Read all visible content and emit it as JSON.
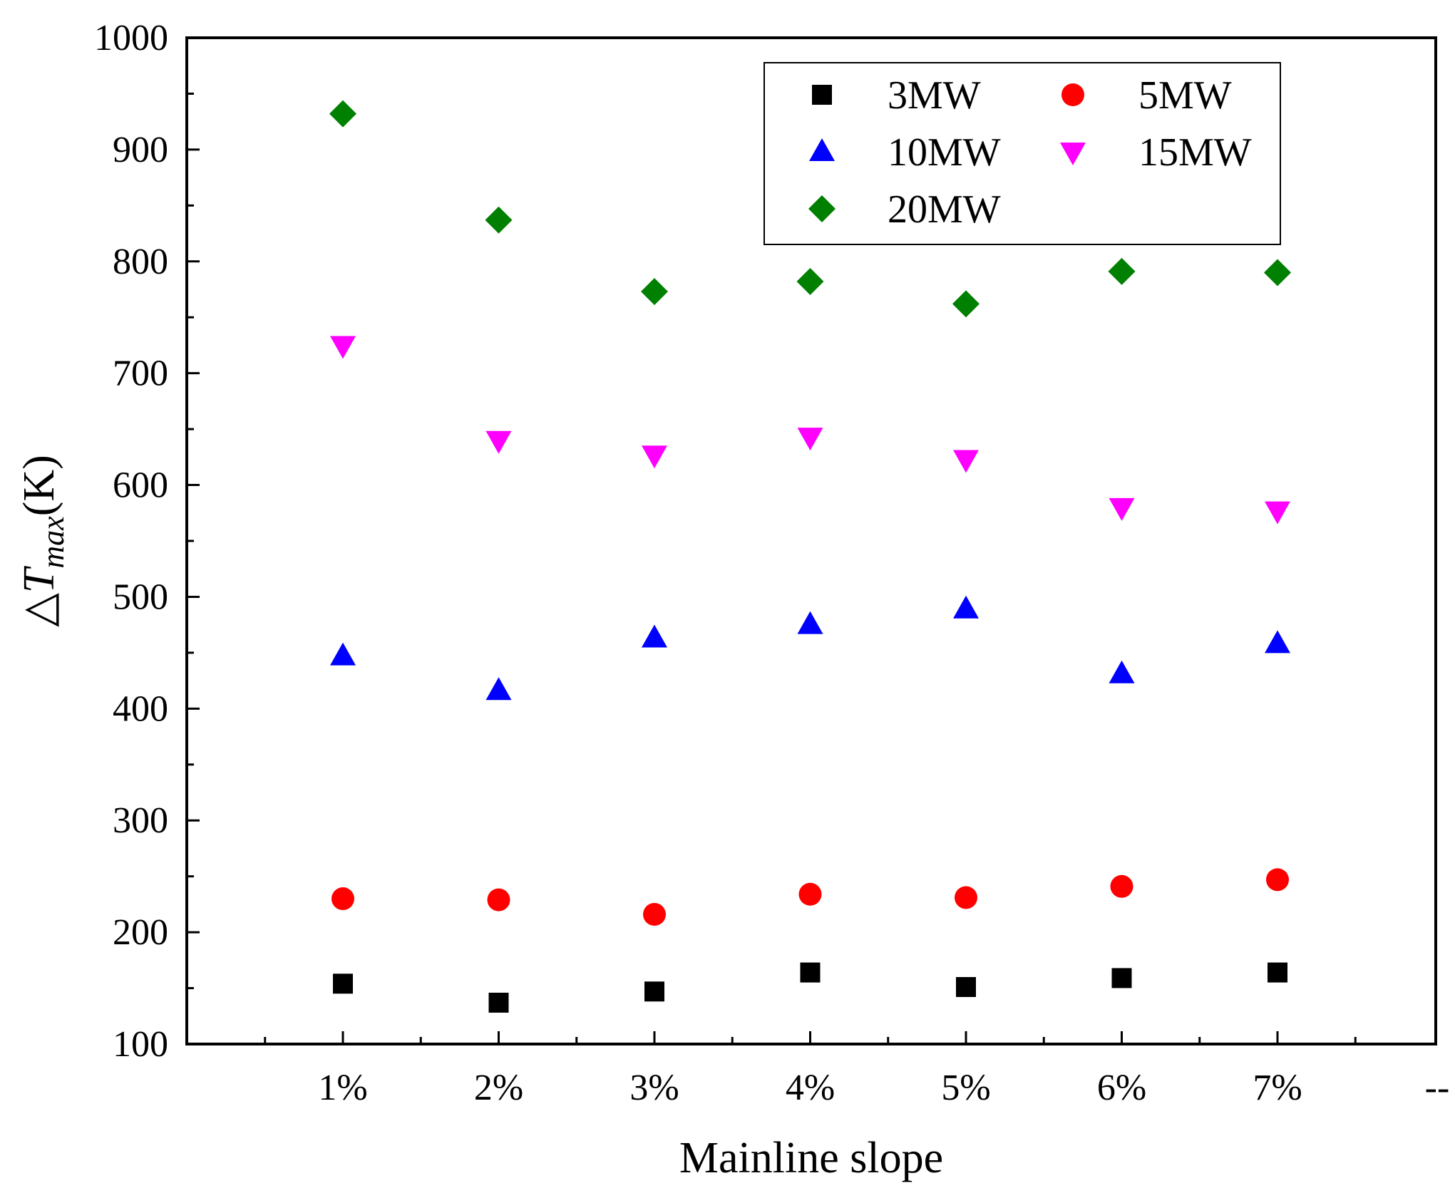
{
  "chart_data": {
    "type": "scatter",
    "title": "",
    "xlabel": "Mainline slope",
    "ylabel": {
      "prefix": "△",
      "var": "T",
      "sub": "max",
      "suffix": "(K)"
    },
    "categories": [
      "1%",
      "2%",
      "3%",
      "4%",
      "5%",
      "6%",
      "7%"
    ],
    "extra_tick_label": "--",
    "ylim": [
      100,
      1000
    ],
    "yticks": [
      100,
      200,
      300,
      400,
      500,
      600,
      700,
      800,
      900,
      1000
    ],
    "grid": false,
    "legend_position": "top-right",
    "series": [
      {
        "name": "3MW",
        "marker": "square",
        "color": "#000000",
        "values": [
          154,
          137,
          147,
          164,
          151,
          159,
          164
        ]
      },
      {
        "name": "5MW",
        "marker": "circle",
        "color": "#ff0000",
        "values": [
          230,
          229,
          216,
          234,
          231,
          241,
          247
        ]
      },
      {
        "name": "10MW",
        "marker": "triangle-up",
        "color": "#0000ff",
        "values": [
          447,
          416,
          463,
          475,
          489,
          431,
          458
        ]
      },
      {
        "name": "15MW",
        "marker": "triangle-down",
        "color": "#ff00ff",
        "values": [
          725,
          640,
          627,
          643,
          623,
          580,
          577
        ]
      },
      {
        "name": "20MW",
        "marker": "diamond",
        "color": "#008000",
        "values": [
          932,
          837,
          773,
          782,
          762,
          791,
          790
        ]
      }
    ]
  }
}
